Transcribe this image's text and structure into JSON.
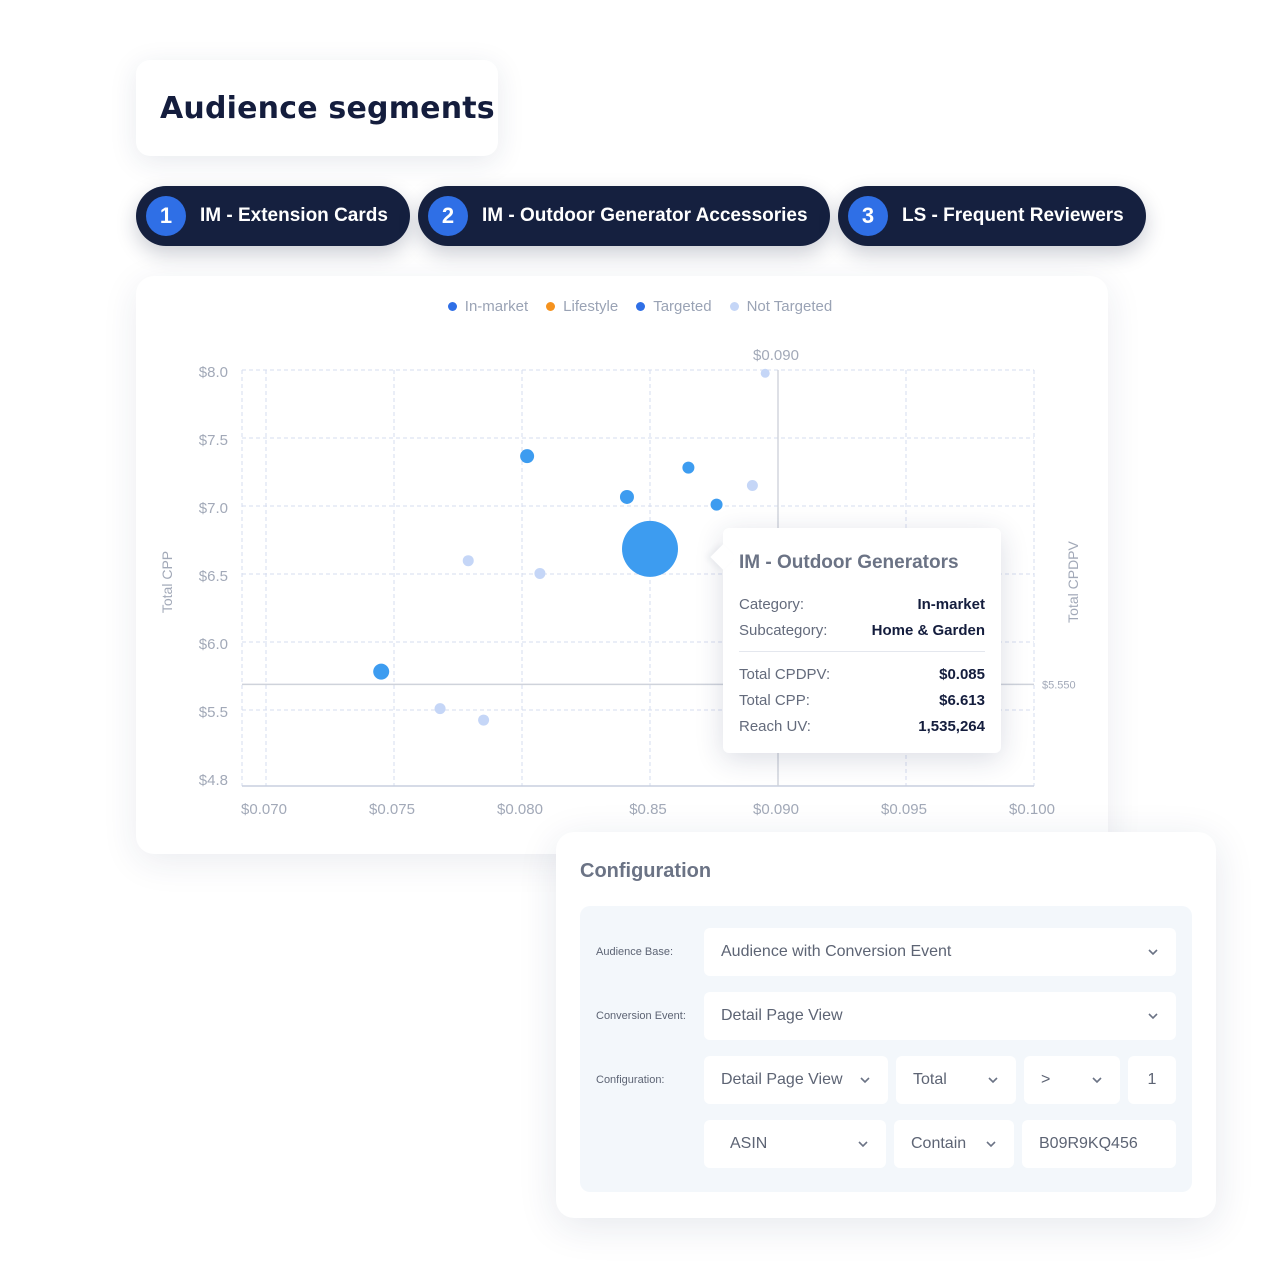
{
  "page": {
    "title": "Audience segments"
  },
  "segments": [
    {
      "number": "1",
      "label": "IM - Extension Cards"
    },
    {
      "number": "2",
      "label": "IM - Outdoor Generator Accessories"
    },
    {
      "number": "3",
      "label": "LS - Frequent Reviewers"
    }
  ],
  "legend": [
    {
      "label": "In-market",
      "color": "#2f6fe6"
    },
    {
      "label": "Lifestyle",
      "color": "#f5921e"
    },
    {
      "label": "Targeted",
      "color": "#2f6fe6"
    },
    {
      "label": "Not Targeted",
      "color": "#c5d6f7"
    }
  ],
  "chart_data": {
    "type": "scatter",
    "xlabel": "",
    "ylabel": "Total CPP",
    "y2label": "Total CPDPV",
    "x_ticks": [
      "$0.070",
      "$0.075",
      "$0.080",
      "$0.85",
      "$0.090",
      "$0.095",
      "$0.100"
    ],
    "y_ticks": [
      "$8.0",
      "$7.5",
      "$7.0",
      "$6.5",
      "$6.0",
      "$5.5",
      "$4.8"
    ],
    "xlim": [
      0.07,
      0.1
    ],
    "ylim": [
      4.8,
      8.0
    ],
    "grid": true,
    "legend_position": "top-center",
    "reference_lines": [
      {
        "axis": "x",
        "value": 0.09,
        "label": "$0.090"
      },
      {
        "axis": "y",
        "value": 5.55,
        "label": "$5.550"
      }
    ],
    "series": [
      {
        "name": "Targeted",
        "color": "#3d9cf0",
        "points": [
          {
            "x": 0.0745,
            "y": 5.65,
            "size": 8
          },
          {
            "x": 0.0802,
            "y": 7.34,
            "size": 7
          },
          {
            "x": 0.0841,
            "y": 7.02,
            "size": 7
          },
          {
            "x": 0.085,
            "y": 6.613,
            "size": 28
          },
          {
            "x": 0.0865,
            "y": 7.25,
            "size": 6
          },
          {
            "x": 0.0876,
            "y": 6.96,
            "size": 6
          }
        ]
      },
      {
        "name": "Not Targeted",
        "color": "#c5d6f7",
        "points": [
          {
            "x": 0.0768,
            "y": 5.36,
            "size": 5.5
          },
          {
            "x": 0.0779,
            "y": 6.52,
            "size": 5.5
          },
          {
            "x": 0.0785,
            "y": 5.27,
            "size": 5.5
          },
          {
            "x": 0.0807,
            "y": 6.42,
            "size": 5.5
          },
          {
            "x": 0.089,
            "y": 7.11,
            "size": 5.5
          },
          {
            "x": 0.0895,
            "y": 7.99,
            "size": 4.5
          }
        ]
      }
    ]
  },
  "tooltip": {
    "title": "IM - Outdoor Generators",
    "rows": [
      {
        "key": "Category:",
        "value": "In-market"
      },
      {
        "key": "Subcategory:",
        "value": "Home & Garden"
      }
    ],
    "metrics": [
      {
        "key": "Total CPDPV:",
        "value": "$0.085"
      },
      {
        "key": "Total CPP:",
        "value": "$6.613"
      },
      {
        "key": "Reach UV:",
        "value": "1,535,264"
      }
    ]
  },
  "configuration": {
    "title": "Configuration",
    "audience_base": {
      "label": "Audience Base:",
      "value": "Audience with Conversion Event"
    },
    "conversion_event": {
      "label": "Conversion Event:",
      "value": "Detail Page View"
    },
    "config": {
      "label": "Configuration:",
      "event": "Detail Page View",
      "aggregate": "Total",
      "operator": ">",
      "count": "1",
      "attribute": "ASIN",
      "match": "Contain",
      "asin_value": "B09R9KQ456"
    }
  }
}
